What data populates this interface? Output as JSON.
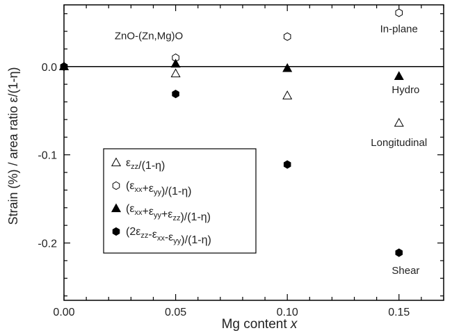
{
  "chart_data": {
    "type": "scatter",
    "xlabel_text": "Mg content ",
    "xlabel_var": "x",
    "ylabel": "Strain (%) / area ratio ε/(1-η)",
    "xlim": [
      0.0,
      0.17
    ],
    "ylim": [
      -0.265,
      0.07
    ],
    "x_ticks": [
      0.0,
      0.05,
      0.1,
      0.15
    ],
    "x_tick_labels": [
      "0.00",
      "0.05",
      "0.10",
      "0.15"
    ],
    "y_ticks": [
      0.0,
      -0.1,
      -0.2
    ],
    "y_tick_labels": [
      "0.0",
      "-0.1",
      "-0.2"
    ],
    "reference_line_y": 0.0,
    "grid": false,
    "legend_placement": "bottom-left",
    "series": [
      {
        "legend": [
          "ε",
          [
            [
              "zz",
              "sub"
            ]
          ],
          "/(1-η)"
        ],
        "marker": "triangle-open",
        "points": [
          [
            0.0,
            0.0
          ],
          [
            0.05,
            -0.008
          ],
          [
            0.1,
            -0.033
          ],
          [
            0.15,
            -0.064
          ]
        ]
      },
      {
        "legend": [
          "(ε",
          [
            [
              "xx",
              "sub"
            ]
          ],
          "+ε",
          [
            [
              "yy",
              "sub"
            ]
          ],
          ")/(1-η)"
        ],
        "marker": "hexagon-open",
        "points": [
          [
            0.0,
            0.0
          ],
          [
            0.05,
            0.01
          ],
          [
            0.1,
            0.034
          ],
          [
            0.15,
            0.061
          ]
        ]
      },
      {
        "legend": [
          "(ε",
          [
            [
              "xx",
              "sub"
            ]
          ],
          "+ε",
          [
            [
              "yy",
              "sub"
            ]
          ],
          "+ε",
          [
            [
              "zz",
              "sub"
            ]
          ],
          ")/(1-η)"
        ],
        "marker": "triangle-filled",
        "points": [
          [
            0.0,
            0.0
          ],
          [
            0.05,
            0.003
          ],
          [
            0.1,
            -0.002
          ],
          [
            0.15,
            -0.011
          ]
        ]
      },
      {
        "legend": [
          "(2ε",
          [
            [
              "zz",
              "sub"
            ]
          ],
          "-ε",
          [
            [
              "xx",
              "sub"
            ]
          ],
          "-ε",
          [
            [
              "yy",
              "sub"
            ]
          ],
          ")/(1-η)"
        ],
        "marker": "hexagon-filled",
        "points": [
          [
            0.0,
            0.0
          ],
          [
            0.05,
            -0.031
          ],
          [
            0.1,
            -0.111
          ],
          [
            0.15,
            -0.211
          ]
        ]
      }
    ],
    "annotations": [
      {
        "text": "ZnO-(Zn,Mg)O",
        "x": 0.038,
        "y": 0.031
      },
      {
        "text": "In-plane",
        "x": 0.15,
        "y": 0.039
      },
      {
        "text": "Hydro",
        "x": 0.153,
        "y": -0.03
      },
      {
        "text": "Longitudinal",
        "x": 0.15,
        "y": -0.09
      },
      {
        "text": "Shear",
        "x": 0.153,
        "y": -0.235
      }
    ]
  }
}
